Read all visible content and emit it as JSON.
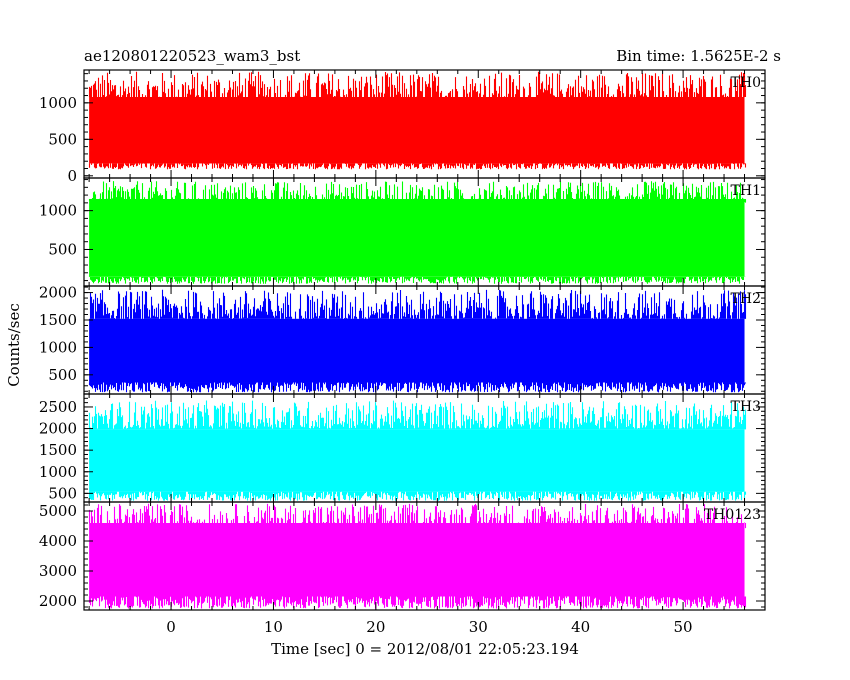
{
  "header": {
    "left_title": "ae120801220523_wam3_bst",
    "right_title": "Bin time: 1.5625E-2 s"
  },
  "chart_data": {
    "type": "line",
    "title": "ae120801220523_wam3_bst",
    "subtitle": "Bin time: 1.5625E-2 s",
    "xlabel": "Time [sec] 0 = 2012/08/01 22:05:23.194",
    "ylabel": "Counts/sec",
    "xlim": [
      -8.5,
      58
    ],
    "x_ticks": [
      0,
      10,
      20,
      30,
      40,
      50
    ],
    "data_x_range": [
      -8,
      56
    ],
    "bin_time_s": 0.015625,
    "grid": false,
    "panels": [
      {
        "name": "TH0",
        "color": "#ff0000",
        "ylim": [
          -30,
          1450
        ],
        "y_ticks": [
          0,
          500,
          1000
        ],
        "series": [
          {
            "name": "TH0",
            "mean": 640,
            "low": [
              90,
              190
            ],
            "high": [
              1000,
              1430
            ],
            "band": [
              170,
              1080
            ]
          }
        ]
      },
      {
        "name": "TH1",
        "color": "#00ff00",
        "ylim": [
          30,
          1420
        ],
        "y_ticks": [
          500,
          1000
        ],
        "series": [
          {
            "name": "TH1",
            "mean": 720,
            "low": [
              60,
              170
            ],
            "high": [
              1080,
              1380
            ],
            "band": [
              150,
              1150
            ]
          }
        ]
      },
      {
        "name": "TH2",
        "color": "#0000ff",
        "ylim": [
          150,
          2120
        ],
        "y_ticks": [
          500,
          1000,
          1500,
          2000
        ],
        "series": [
          {
            "name": "TH2",
            "mean": 940,
            "low": [
              180,
              380
            ],
            "high": [
              1500,
              2050
            ],
            "band": [
              360,
              1520
            ]
          }
        ]
      },
      {
        "name": "TH3",
        "color": "#00ffff",
        "ylim": [
          300,
          2800
        ],
        "y_ticks": [
          500,
          1000,
          1500,
          2000,
          2500
        ],
        "series": [
          {
            "name": "TH3",
            "mean": 1120,
            "low": [
              330,
              560
            ],
            "high": [
              2000,
              2650
            ],
            "band": [
              540,
              1980
            ]
          }
        ]
      },
      {
        "name": "TH0123",
        "color": "#ff00ff",
        "ylim": [
          1700,
          5300
        ],
        "y_ticks": [
          2000,
          3000,
          4000,
          5000
        ],
        "series": [
          {
            "name": "TH0123",
            "mean": 3380,
            "low": [
              1750,
              2200
            ],
            "high": [
              4400,
              5250
            ],
            "band": [
              2150,
              4600
            ]
          }
        ]
      }
    ]
  }
}
